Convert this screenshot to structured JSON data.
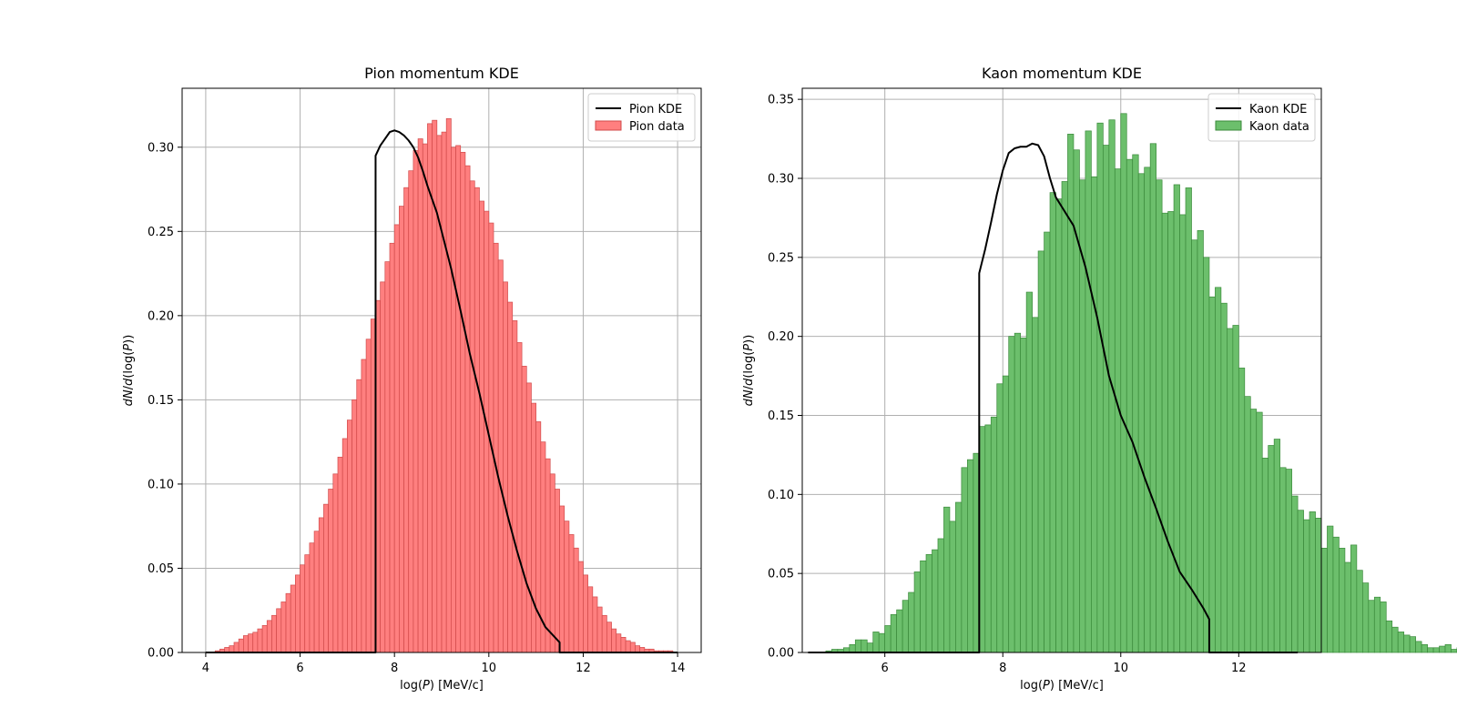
{
  "chart_data": [
    {
      "type": "bar",
      "title": "Pion momentum KDE",
      "xlabel": "log(P) [MeV/c]",
      "ylabel": "dN/d(log(P))",
      "xlim": [
        3.5,
        14.5
      ],
      "ylim": [
        0,
        0.335
      ],
      "xticks": [
        4,
        6,
        8,
        10,
        12,
        14
      ],
      "yticks": [
        0.0,
        0.05,
        0.1,
        0.15,
        0.2,
        0.25,
        0.3
      ],
      "grid": true,
      "legend_position": "top-right",
      "legend": [
        "Pion KDE",
        "Pion data"
      ],
      "colors": {
        "hist_fill": "#ff7f7f",
        "hist_edge": "#d04a4a",
        "kde": "#000000"
      },
      "hist": {
        "start": 4.0,
        "bin_width": 0.1,
        "values": [
          0.0,
          0.0,
          0.001,
          0.002,
          0.003,
          0.004,
          0.006,
          0.008,
          0.01,
          0.011,
          0.012,
          0.014,
          0.016,
          0.019,
          0.022,
          0.026,
          0.03,
          0.035,
          0.04,
          0.046,
          0.052,
          0.058,
          0.065,
          0.072,
          0.08,
          0.088,
          0.097,
          0.106,
          0.116,
          0.127,
          0.138,
          0.15,
          0.162,
          0.174,
          0.186,
          0.198,
          0.209,
          0.22,
          0.232,
          0.243,
          0.254,
          0.265,
          0.276,
          0.286,
          0.298,
          0.305,
          0.302,
          0.314,
          0.316,
          0.307,
          0.309,
          0.317,
          0.3,
          0.301,
          0.297,
          0.289,
          0.28,
          0.276,
          0.268,
          0.262,
          0.255,
          0.243,
          0.233,
          0.22,
          0.208,
          0.197,
          0.184,
          0.17,
          0.16,
          0.148,
          0.137,
          0.125,
          0.115,
          0.106,
          0.097,
          0.087,
          0.078,
          0.07,
          0.062,
          0.054,
          0.046,
          0.039,
          0.033,
          0.027,
          0.022,
          0.018,
          0.014,
          0.011,
          0.009,
          0.007,
          0.006,
          0.004,
          0.003,
          0.002,
          0.002,
          0.001,
          0.001,
          0.001,
          0.001,
          0.0,
          0.0,
          0.0,
          0.0,
          0.0,
          0.0,
          0.0,
          0.0,
          0.0,
          0.0,
          0.0,
          0.0,
          0.0,
          0.0,
          0.0,
          0.0,
          0.0,
          0.0,
          0.0,
          0.0,
          0.0,
          0.0,
          0.0,
          0.0,
          0.0,
          0.0,
          0.0,
          0.0,
          0.0,
          0.0,
          0.0,
          0.0,
          0.0,
          0.0,
          0.0,
          0.0,
          0.0,
          0.0,
          0.0,
          0.0,
          0.0,
          0.0,
          0.0,
          0.0,
          0.0,
          0.0,
          0.0,
          0.0,
          0.0
        ]
      },
      "kde": {
        "x": [
          4.0,
          7.6,
          7.6,
          7.7,
          7.8,
          7.9,
          8.0,
          8.1,
          8.2,
          8.3,
          8.4,
          8.5,
          8.6,
          8.7,
          8.8,
          8.9,
          9.0,
          9.2,
          9.4,
          9.6,
          9.8,
          10.0,
          10.2,
          10.4,
          10.6,
          10.8,
          11.0,
          11.2,
          11.4,
          11.5,
          11.5,
          14.0
        ],
        "y": [
          0.0,
          0.0,
          0.295,
          0.301,
          0.305,
          0.309,
          0.31,
          0.309,
          0.307,
          0.304,
          0.3,
          0.294,
          0.286,
          0.277,
          0.269,
          0.261,
          0.25,
          0.228,
          0.203,
          0.177,
          0.154,
          0.129,
          0.104,
          0.081,
          0.06,
          0.041,
          0.026,
          0.015,
          0.009,
          0.006,
          0.0,
          0.0
        ]
      }
    },
    {
      "type": "bar",
      "title": "Kaon momentum KDE",
      "xlabel": "log(P) [MeV/c]",
      "ylabel": "dN/d(log(P))",
      "xlim": [
        4.6,
        13.4
      ],
      "ylim": [
        0,
        0.357
      ],
      "xticks": [
        6,
        8,
        10,
        12
      ],
      "yticks": [
        0.0,
        0.05,
        0.1,
        0.15,
        0.2,
        0.25,
        0.3,
        0.35
      ],
      "grid": true,
      "legend_position": "top-right",
      "legend": [
        "Kaon KDE",
        "Kaon data"
      ],
      "colors": {
        "hist_fill": "#6cbf6c",
        "hist_edge": "#3a8a3a",
        "kde": "#000000"
      },
      "hist": {
        "start": 5.0,
        "bin_width": 0.1,
        "values": [
          0.001,
          0.002,
          0.002,
          0.003,
          0.005,
          0.008,
          0.008,
          0.006,
          0.013,
          0.012,
          0.017,
          0.024,
          0.027,
          0.033,
          0.038,
          0.051,
          0.058,
          0.062,
          0.065,
          0.072,
          0.092,
          0.083,
          0.095,
          0.117,
          0.122,
          0.126,
          0.143,
          0.144,
          0.149,
          0.17,
          0.175,
          0.2,
          0.202,
          0.199,
          0.228,
          0.212,
          0.254,
          0.266,
          0.291,
          0.287,
          0.298,
          0.328,
          0.318,
          0.299,
          0.33,
          0.301,
          0.335,
          0.321,
          0.337,
          0.306,
          0.341,
          0.312,
          0.315,
          0.303,
          0.307,
          0.322,
          0.299,
          0.278,
          0.279,
          0.296,
          0.277,
          0.294,
          0.261,
          0.267,
          0.25,
          0.225,
          0.231,
          0.221,
          0.205,
          0.207,
          0.18,
          0.162,
          0.154,
          0.152,
          0.123,
          0.131,
          0.135,
          0.117,
          0.116,
          0.099,
          0.09,
          0.084,
          0.089,
          0.085,
          0.066,
          0.08,
          0.073,
          0.066,
          0.057,
          0.068,
          0.052,
          0.044,
          0.033,
          0.035,
          0.032,
          0.02,
          0.016,
          0.013,
          0.011,
          0.01,
          0.007,
          0.005,
          0.003,
          0.003,
          0.004,
          0.005,
          0.002,
          0.003,
          0.003,
          0.002,
          0.001,
          0.0,
          0.001,
          0.0,
          0.0,
          0.0,
          0.0,
          0.0,
          0.0,
          0.0
        ]
      },
      "kde": {
        "x": [
          4.7,
          7.6,
          7.6,
          7.7,
          7.8,
          7.9,
          8.0,
          8.1,
          8.2,
          8.3,
          8.4,
          8.5,
          8.6,
          8.7,
          8.8,
          8.9,
          9.0,
          9.2,
          9.4,
          9.6,
          9.8,
          10.0,
          10.2,
          10.4,
          10.6,
          10.8,
          11.0,
          11.2,
          11.4,
          11.5,
          11.5,
          13.0
        ],
        "y": [
          0.0,
          0.0,
          0.24,
          0.255,
          0.272,
          0.29,
          0.305,
          0.316,
          0.319,
          0.32,
          0.32,
          0.322,
          0.321,
          0.314,
          0.3,
          0.288,
          0.282,
          0.27,
          0.244,
          0.212,
          0.175,
          0.15,
          0.133,
          0.111,
          0.091,
          0.07,
          0.051,
          0.04,
          0.028,
          0.021,
          0.0,
          0.0
        ]
      }
    }
  ]
}
